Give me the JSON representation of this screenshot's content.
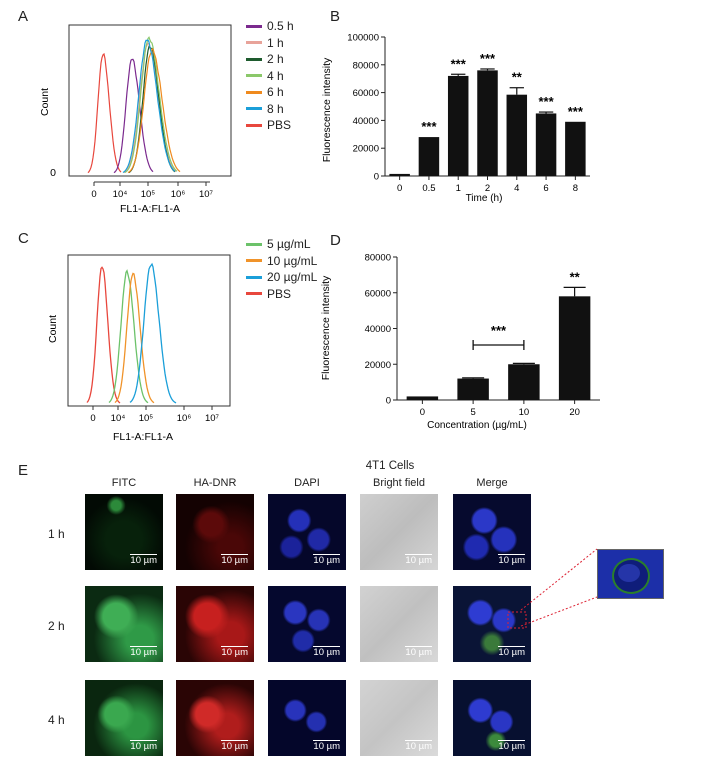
{
  "panels": {
    "A": {
      "label": "A",
      "xlabel": "FL1-A:FL1-A",
      "ylabel": "Count",
      "y_tick": "0",
      "x_ticks": [
        "0",
        "10⁴",
        "10⁵",
        "10⁶",
        "10⁷"
      ],
      "legend": [
        {
          "name": "0.5 h",
          "color": "#7b2a8e"
        },
        {
          "name": "1 h",
          "color": "#e8a39a"
        },
        {
          "name": "2 h",
          "color": "#1e5b2e"
        },
        {
          "name": "4 h",
          "color": "#8bc86a"
        },
        {
          "name": "6 h",
          "color": "#ef8a1e"
        },
        {
          "name": "8 h",
          "color": "#1b9fd9"
        },
        {
          "name": "PBS",
          "color": "#e8473d"
        }
      ]
    },
    "C": {
      "label": "C",
      "xlabel": "FL1-A:FL1-A",
      "ylabel": "Count",
      "x_ticks": [
        "0",
        "10⁴",
        "10⁵",
        "10⁶",
        "10⁷"
      ],
      "legend": [
        {
          "name": "5 µg/mL",
          "color": "#6cc26a"
        },
        {
          "name": "10 µg/mL",
          "color": "#f0932a"
        },
        {
          "name": "20 µg/mL",
          "color": "#1b9fd9"
        },
        {
          "name": "PBS",
          "color": "#e8473d"
        }
      ]
    },
    "B": {
      "label": "B"
    },
    "D": {
      "label": "D"
    },
    "E": {
      "label": "E",
      "title": "4T1 Cells",
      "columns": [
        "FITC",
        "HA-DNR",
        "DAPI",
        "Bright field",
        "Merge"
      ],
      "rows": [
        "1 h",
        "2 h",
        "4 h"
      ],
      "scale_bar": "10 µm"
    }
  },
  "chart_data": [
    {
      "type": "bar",
      "panel": "B",
      "xlabel": "Time (h)",
      "ylabel": "Fluorescence intensity",
      "categories": [
        "0",
        "0.5",
        "1",
        "2",
        "4",
        "6",
        "8"
      ],
      "values": [
        1500,
        28000,
        72000,
        76000,
        58500,
        45000,
        39000
      ],
      "errors": [
        0,
        0,
        1200,
        1000,
        5000,
        1000,
        0
      ],
      "significance": [
        "",
        "***",
        "***",
        "***",
        "**",
        "***",
        "***"
      ],
      "ylim": [
        0,
        100000
      ],
      "yticks": [
        "0",
        "20000",
        "40000",
        "60000",
        "80000",
        "100000"
      ]
    },
    {
      "type": "bar",
      "panel": "D",
      "xlabel": "Concentration (µg/mL)",
      "ylabel": "Fluorescence intensity",
      "categories": [
        "0",
        "5",
        "10",
        "20"
      ],
      "values": [
        2000,
        12000,
        20000,
        58000
      ],
      "errors": [
        0,
        400,
        500,
        5000
      ],
      "significance": [
        "",
        "",
        "",
        "**"
      ],
      "bracket": {
        "from": "5",
        "to": "10",
        "label": "***"
      },
      "ylim": [
        0,
        80000
      ],
      "yticks": [
        "0",
        "20000",
        "40000",
        "60000",
        "80000"
      ]
    }
  ]
}
